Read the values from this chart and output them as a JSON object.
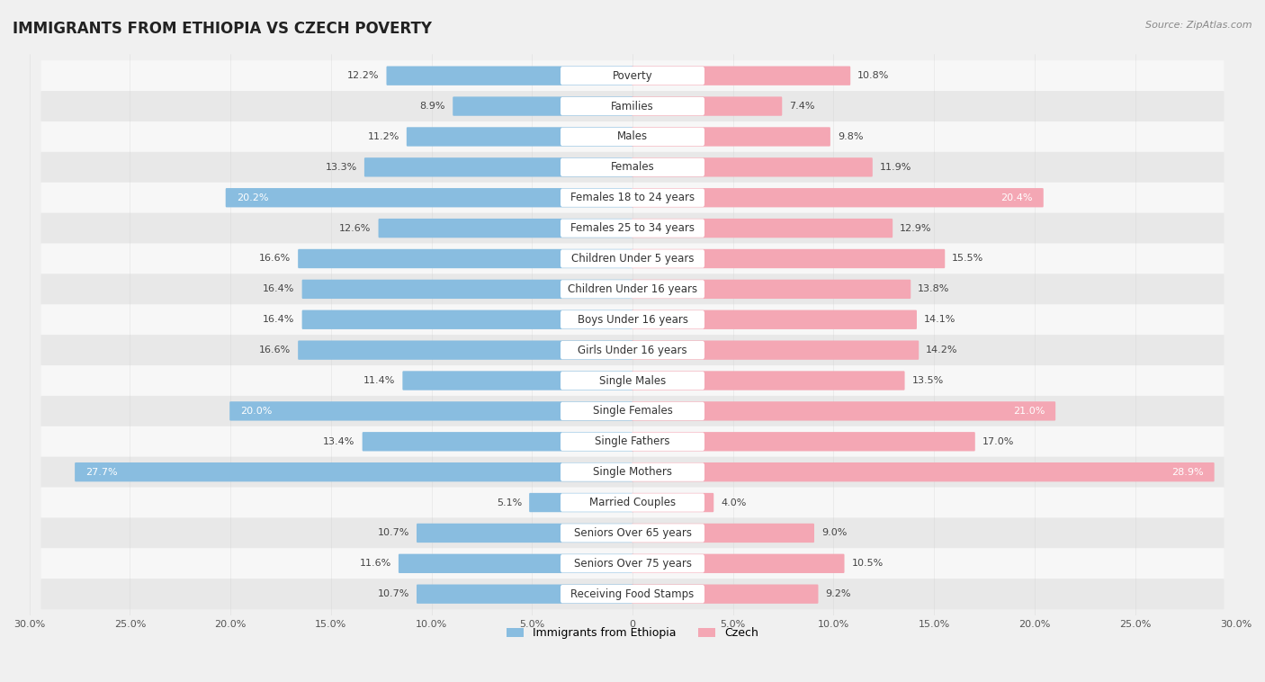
{
  "title": "IMMIGRANTS FROM ETHIOPIA VS CZECH POVERTY",
  "source": "Source: ZipAtlas.com",
  "categories": [
    "Poverty",
    "Families",
    "Males",
    "Females",
    "Females 18 to 24 years",
    "Females 25 to 34 years",
    "Children Under 5 years",
    "Children Under 16 years",
    "Boys Under 16 years",
    "Girls Under 16 years",
    "Single Males",
    "Single Females",
    "Single Fathers",
    "Single Mothers",
    "Married Couples",
    "Seniors Over 65 years",
    "Seniors Over 75 years",
    "Receiving Food Stamps"
  ],
  "ethiopia_values": [
    12.2,
    8.9,
    11.2,
    13.3,
    20.2,
    12.6,
    16.6,
    16.4,
    16.4,
    16.6,
    11.4,
    20.0,
    13.4,
    27.7,
    5.1,
    10.7,
    11.6,
    10.7
  ],
  "czech_values": [
    10.8,
    7.4,
    9.8,
    11.9,
    20.4,
    12.9,
    15.5,
    13.8,
    14.1,
    14.2,
    13.5,
    21.0,
    17.0,
    28.9,
    4.0,
    9.0,
    10.5,
    9.2
  ],
  "ethiopia_color": "#89bde0",
  "czech_color": "#f4a7b4",
  "highlight_rows": [
    4,
    11,
    13
  ],
  "background_color": "#f0f0f0",
  "row_bg_light": "#f7f7f7",
  "row_bg_dark": "#e8e8e8",
  "axis_max": 30.0,
  "legend_ethiopia": "Immigrants from Ethiopia",
  "legend_czech": "Czech",
  "title_fontsize": 12,
  "label_fontsize": 8.5,
  "value_fontsize": 8
}
